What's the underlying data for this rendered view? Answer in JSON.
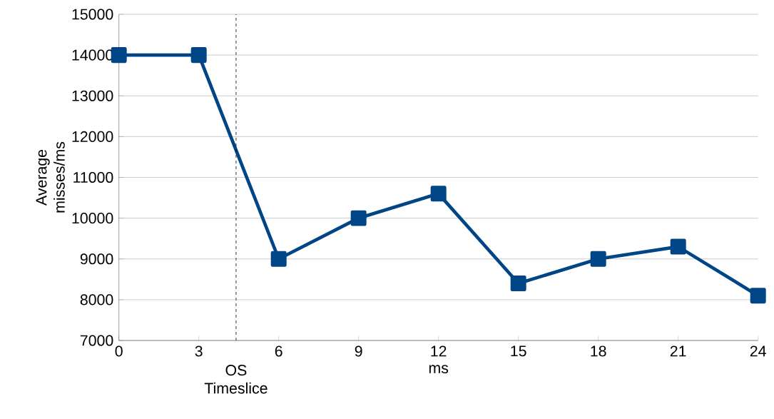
{
  "chart_data": {
    "type": "line",
    "xlabel": "ms",
    "ylabel": "Average misses/ms",
    "x": [
      0,
      3,
      6,
      9,
      12,
      15,
      18,
      21,
      24
    ],
    "series": [
      {
        "color": "#004586",
        "values": [
          14000,
          14000,
          9000,
          10000,
          10600,
          8400,
          9000,
          9300,
          8100
        ]
      }
    ],
    "xlim": [
      0,
      24
    ],
    "xticks": [
      0,
      3,
      6,
      9,
      12,
      15,
      18,
      21,
      24
    ],
    "ylim": [
      7000,
      15000
    ],
    "yticks": [
      7000,
      8000,
      9000,
      10000,
      11000,
      12000,
      13000,
      14000,
      15000
    ],
    "ref_lines": [
      {
        "axis": "x",
        "value": 4.4,
        "label": "OS Timeslice",
        "color": "#000000",
        "line_style": "dashed"
      }
    ],
    "grid": "y",
    "marker": "square",
    "line_style": "solid"
  }
}
